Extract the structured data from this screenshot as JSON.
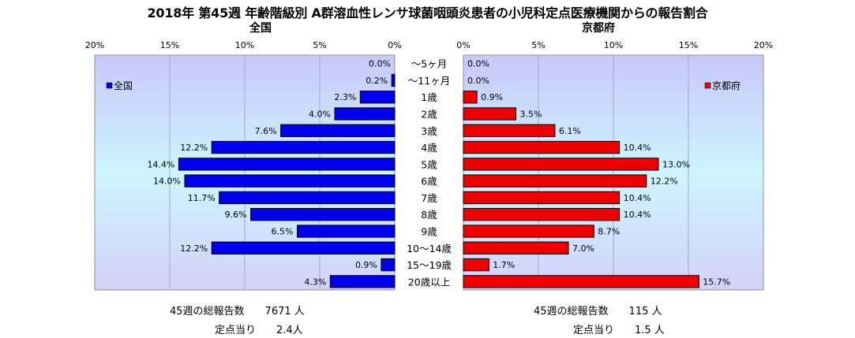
{
  "title": "2018年 第45週 年齢階級別 A群溶血性レンサ球菌咽頭炎患者の小児科定点医療機関からの報告割合",
  "chart_data": [
    {
      "type": "bar",
      "orientation": "horizontal",
      "title": "全国",
      "categories": [
        "～5ヶ月",
        "～11ヶ月",
        "1歳",
        "2歳",
        "3歳",
        "4歳",
        "5歳",
        "6歳",
        "7歳",
        "8歳",
        "9歳",
        "10～14歳",
        "15～19歳",
        "20歳以上"
      ],
      "series": [
        {
          "name": "全国",
          "color": "#0000ee",
          "values": [
            0.0,
            0.2,
            2.3,
            4.0,
            7.6,
            12.2,
            14.4,
            14.0,
            11.7,
            9.6,
            6.5,
            12.2,
            0.9,
            4.3
          ],
          "value_labels": [
            "0.0%",
            "0.2%",
            "2.3%",
            "4.0%",
            "7.6%",
            "12.2%",
            "14.4%",
            "14.0%",
            "11.7%",
            "9.6%",
            "6.5%",
            "12.2%",
            "0.9%",
            "4.3%"
          ]
        }
      ],
      "xlim": [
        0,
        20
      ],
      "x_reversed": true,
      "xticks": [
        "20%",
        "15%",
        "10%",
        "5%",
        "0%"
      ],
      "legend": "left",
      "plot_background": "light-blue gradient",
      "grid": true
    },
    {
      "type": "bar",
      "orientation": "horizontal",
      "title": "京都府",
      "categories": [
        "～5ヶ月",
        "～11ヶ月",
        "1歳",
        "2歳",
        "3歳",
        "4歳",
        "5歳",
        "6歳",
        "7歳",
        "8歳",
        "9歳",
        "10～14歳",
        "15～19歳",
        "20歳以上"
      ],
      "series": [
        {
          "name": "京都府",
          "color": "#ee0000",
          "values": [
            0.0,
            0.0,
            0.9,
            3.5,
            6.1,
            10.4,
            13.0,
            12.2,
            10.4,
            10.4,
            8.7,
            7.0,
            1.7,
            15.7
          ],
          "value_labels": [
            "0.0%",
            "0.0%",
            "0.9%",
            "3.5%",
            "6.1%",
            "10.4%",
            "13.0%",
            "12.2%",
            "10.4%",
            "10.4%",
            "8.7%",
            "7.0%",
            "1.7%",
            "15.7%"
          ]
        }
      ],
      "xlim": [
        0,
        20
      ],
      "x_reversed": false,
      "xticks": [
        "0%",
        "5%",
        "10%",
        "15%",
        "20%"
      ],
      "legend": "right",
      "plot_background": "light-blue gradient",
      "grid": true
    }
  ],
  "footer": {
    "national_reports": "45週の総報告数　　7671 人",
    "national_per_sentinel": "定点当り　　2.4人",
    "kyoto_reports": "45週の総報告数　　115 人",
    "kyoto_per_sentinel": "定点当り　　1.5 人"
  }
}
